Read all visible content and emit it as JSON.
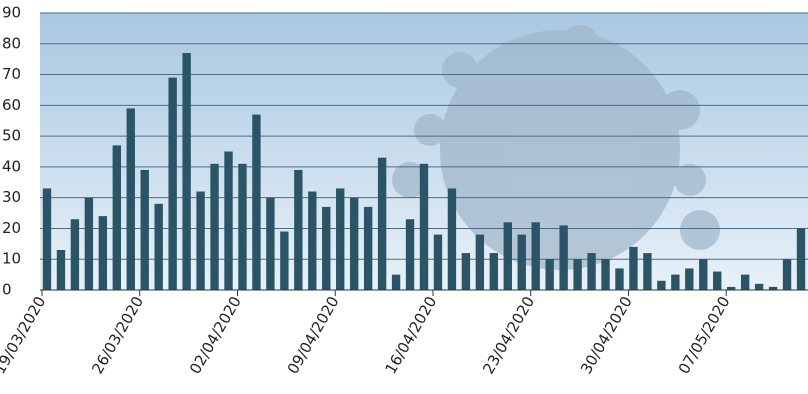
{
  "chart_data": {
    "type": "bar",
    "categories": [
      "19/03/2020",
      null,
      null,
      null,
      null,
      null,
      null,
      "26/03/2020",
      null,
      null,
      null,
      null,
      null,
      null,
      "02/04/2020",
      null,
      null,
      null,
      null,
      null,
      null,
      "09/04/2020",
      null,
      null,
      null,
      null,
      null,
      null,
      "16/04/2020",
      null,
      null,
      null,
      null,
      null,
      null,
      "23/04/2020",
      null,
      null,
      null,
      null,
      null,
      null,
      "30/04/2020",
      null,
      null,
      null,
      null,
      null,
      null,
      "07/05/2020",
      null,
      null,
      null,
      null,
      null
    ],
    "values": [
      33,
      13,
      23,
      30,
      24,
      47,
      59,
      39,
      28,
      69,
      77,
      32,
      41,
      45,
      41,
      57,
      30,
      19,
      39,
      32,
      27,
      33,
      30,
      27,
      43,
      5,
      23,
      41,
      18,
      33,
      12,
      18,
      12,
      22,
      18,
      22,
      10,
      21,
      10,
      12,
      10,
      7,
      14,
      12,
      3,
      5,
      7,
      10,
      6,
      1,
      5,
      2,
      1,
      10,
      20
    ],
    "color": "#2b5566",
    "ylim": [
      0,
      90
    ],
    "yticks": [
      0,
      10,
      20,
      30,
      40,
      50,
      60,
      70,
      80,
      90
    ],
    "grid": true
  }
}
